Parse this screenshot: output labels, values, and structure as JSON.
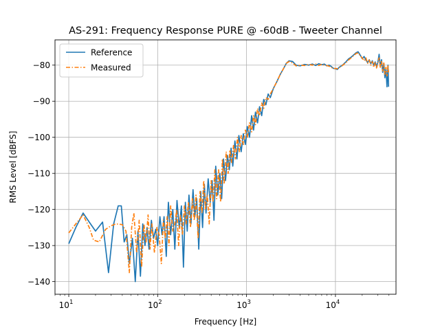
{
  "chart_data": {
    "type": "line",
    "title": "AS-291: Frequency Response PURE @ -60dB - Tweeter Channel",
    "xlabel": "Frequency [Hz]",
    "ylabel": "RMS Level [dBFS]",
    "xscale": "log",
    "xlim": [
      7,
      48000
    ],
    "ylim": [
      -143.5,
      -73
    ],
    "x_ticks": [
      {
        "value": 10,
        "base": "10",
        "exp": "1"
      },
      {
        "value": 100,
        "base": "10",
        "exp": "2"
      },
      {
        "value": 1000,
        "base": "10",
        "exp": "3"
      },
      {
        "value": 10000,
        "base": "10",
        "exp": "4"
      }
    ],
    "y_ticks": [
      {
        "value": -80,
        "label": "−80"
      },
      {
        "value": -90,
        "label": "−90"
      },
      {
        "value": -100,
        "label": "−100"
      },
      {
        "value": -110,
        "label": "−110"
      },
      {
        "value": -120,
        "label": "−120"
      },
      {
        "value": -130,
        "label": "−130"
      },
      {
        "value": -140,
        "label": "−140"
      }
    ],
    "grid": true,
    "legend": "top-left",
    "series": [
      {
        "name": "Reference",
        "color": "#1f77b4",
        "style": "solid",
        "points": [
          [
            10,
            -129.5
          ],
          [
            12,
            -125
          ],
          [
            14.5,
            -121
          ],
          [
            17,
            -123.5
          ],
          [
            20,
            -126
          ],
          [
            24,
            -123.5
          ],
          [
            28,
            -137.5
          ],
          [
            32,
            -124
          ],
          [
            36,
            -119
          ],
          [
            39,
            -119
          ],
          [
            42,
            -129
          ],
          [
            45,
            -127
          ],
          [
            48,
            -135
          ],
          [
            52,
            -128
          ],
          [
            56,
            -140
          ],
          [
            60,
            -126
          ],
          [
            64,
            -138.5
          ],
          [
            68,
            -124
          ],
          [
            72,
            -130
          ],
          [
            76,
            -125
          ],
          [
            80,
            -131
          ],
          [
            85,
            -123
          ],
          [
            90,
            -128
          ],
          [
            95,
            -125.5
          ],
          [
            100,
            -130
          ],
          [
            106,
            -122
          ],
          [
            112,
            -127
          ],
          [
            118,
            -122
          ],
          [
            125,
            -133
          ],
          [
            132,
            -118
          ],
          [
            140,
            -127
          ],
          [
            148,
            -120
          ],
          [
            156,
            -131
          ],
          [
            165,
            -117.5
          ],
          [
            175,
            -125
          ],
          [
            185,
            -119
          ],
          [
            195,
            -136
          ],
          [
            205,
            -118
          ],
          [
            215,
            -126
          ],
          [
            225,
            -116
          ],
          [
            237,
            -124
          ],
          [
            250,
            -114.5
          ],
          [
            262,
            -122
          ],
          [
            275,
            -117
          ],
          [
            290,
            -131
          ],
          [
            305,
            -115
          ],
          [
            320,
            -125
          ],
          [
            335,
            -113
          ],
          [
            350,
            -121
          ],
          [
            370,
            -111.5
          ],
          [
            390,
            -118
          ],
          [
            410,
            -112
          ],
          [
            430,
            -123
          ],
          [
            450,
            -108
          ],
          [
            475,
            -116
          ],
          [
            500,
            -110
          ],
          [
            525,
            -117
          ],
          [
            550,
            -106
          ],
          [
            580,
            -112
          ],
          [
            610,
            -105
          ],
          [
            640,
            -109
          ],
          [
            670,
            -103
          ],
          [
            700,
            -108
          ],
          [
            740,
            -101
          ],
          [
            780,
            -106
          ],
          [
            820,
            -99.5
          ],
          [
            870,
            -104
          ],
          [
            920,
            -99
          ],
          [
            970,
            -102
          ],
          [
            1020,
            -97
          ],
          [
            1080,
            -100
          ],
          [
            1140,
            -94
          ],
          [
            1200,
            -98
          ],
          [
            1260,
            -93
          ],
          [
            1330,
            -96
          ],
          [
            1400,
            -91.5
          ],
          [
            1480,
            -94
          ],
          [
            1560,
            -89.5
          ],
          [
            1650,
            -91
          ],
          [
            1750,
            -88
          ],
          [
            1850,
            -89
          ],
          [
            2000,
            -86.5
          ],
          [
            2200,
            -84.5
          ],
          [
            2400,
            -82.5
          ],
          [
            2600,
            -81
          ],
          [
            2800,
            -79.5
          ],
          [
            3000,
            -78.8
          ],
          [
            3300,
            -79
          ],
          [
            3600,
            -80
          ],
          [
            4000,
            -80.2
          ],
          [
            4500,
            -79.8
          ],
          [
            5000,
            -80
          ],
          [
            5500,
            -79.7
          ],
          [
            6000,
            -80.1
          ],
          [
            6500,
            -79.6
          ],
          [
            7000,
            -79.9
          ],
          [
            7500,
            -79.7
          ],
          [
            8000,
            -80.2
          ],
          [
            8500,
            -80
          ],
          [
            9000,
            -80.4
          ],
          [
            9500,
            -80.9
          ],
          [
            10000,
            -81
          ],
          [
            10500,
            -81.2
          ],
          [
            11000,
            -80.6
          ],
          [
            12000,
            -80
          ],
          [
            13000,
            -79.2
          ],
          [
            14000,
            -78.3
          ],
          [
            15000,
            -77.8
          ],
          [
            16000,
            -77.2
          ],
          [
            17000,
            -76.6
          ],
          [
            18000,
            -76.3
          ],
          [
            19000,
            -77.2
          ],
          [
            20000,
            -78.2
          ],
          [
            21000,
            -77.6
          ],
          [
            22000,
            -78.6
          ],
          [
            23000,
            -79.3
          ],
          [
            24000,
            -78.5
          ],
          [
            25000,
            -79.6
          ],
          [
            26000,
            -78.8
          ],
          [
            27000,
            -80
          ],
          [
            28000,
            -79.1
          ],
          [
            29000,
            -80.4
          ],
          [
            30000,
            -79.2
          ],
          [
            31000,
            -77
          ],
          [
            32000,
            -80.5
          ],
          [
            33000,
            -78.5
          ],
          [
            34000,
            -82
          ],
          [
            35000,
            -79.5
          ],
          [
            36000,
            -83.5
          ],
          [
            37000,
            -81
          ],
          [
            38000,
            -86
          ],
          [
            39000,
            -80
          ],
          [
            39600,
            -86
          ]
        ]
      },
      {
        "name": "Measured",
        "color": "#ff7f0e",
        "style": "dashdot",
        "points": [
          [
            10,
            -126.5
          ],
          [
            12,
            -124
          ],
          [
            14.5,
            -121.5
          ],
          [
            17,
            -125
          ],
          [
            19,
            -128.5
          ],
          [
            22,
            -129
          ],
          [
            26,
            -125.5
          ],
          [
            30,
            -124.5
          ],
          [
            34,
            -124
          ],
          [
            40,
            -124.2
          ],
          [
            44,
            -126
          ],
          [
            48,
            -137.5
          ],
          [
            51,
            -125
          ],
          [
            54,
            -121
          ],
          [
            58,
            -132
          ],
          [
            62,
            -123
          ],
          [
            66,
            -136
          ],
          [
            70,
            -124
          ],
          [
            74,
            -129
          ],
          [
            78,
            -121.5
          ],
          [
            82,
            -131
          ],
          [
            86,
            -124
          ],
          [
            92,
            -132
          ],
          [
            98,
            -125
          ],
          [
            104,
            -127
          ],
          [
            110,
            -135
          ],
          [
            116,
            -123
          ],
          [
            122,
            -128
          ],
          [
            128,
            -122
          ],
          [
            134,
            -130
          ],
          [
            140,
            -119
          ],
          [
            148,
            -126
          ],
          [
            156,
            -124
          ],
          [
            164,
            -120
          ],
          [
            172,
            -130
          ],
          [
            180,
            -121.5
          ],
          [
            190,
            -127
          ],
          [
            200,
            -119
          ],
          [
            210,
            -124
          ],
          [
            222,
            -118
          ],
          [
            234,
            -125
          ],
          [
            246,
            -117
          ],
          [
            258,
            -123
          ],
          [
            270,
            -116
          ],
          [
            285,
            -128
          ],
          [
            300,
            -115
          ],
          [
            315,
            -121
          ],
          [
            330,
            -112
          ],
          [
            345,
            -120
          ],
          [
            362,
            -116
          ],
          [
            380,
            -124
          ],
          [
            400,
            -112
          ],
          [
            420,
            -118
          ],
          [
            440,
            -109
          ],
          [
            460,
            -117
          ],
          [
            485,
            -109
          ],
          [
            510,
            -118
          ],
          [
            535,
            -106
          ],
          [
            560,
            -113
          ],
          [
            590,
            -104
          ],
          [
            620,
            -110
          ],
          [
            650,
            -103.5
          ],
          [
            680,
            -107
          ],
          [
            715,
            -102
          ],
          [
            750,
            -106
          ],
          [
            790,
            -100
          ],
          [
            830,
            -104
          ],
          [
            870,
            -99.5
          ],
          [
            920,
            -102
          ],
          [
            970,
            -98
          ],
          [
            1020,
            -100
          ],
          [
            1080,
            -96
          ],
          [
            1140,
            -98.5
          ],
          [
            1200,
            -94
          ],
          [
            1260,
            -96.5
          ],
          [
            1330,
            -92
          ],
          [
            1400,
            -94
          ],
          [
            1480,
            -90.5
          ],
          [
            1560,
            -92
          ],
          [
            1650,
            -89
          ],
          [
            1750,
            -89.5
          ],
          [
            1850,
            -88
          ],
          [
            2000,
            -86.5
          ],
          [
            2200,
            -84.5
          ],
          [
            2400,
            -82.5
          ],
          [
            2600,
            -81
          ],
          [
            2800,
            -79.5
          ],
          [
            3000,
            -79
          ],
          [
            3300,
            -79.4
          ],
          [
            3600,
            -80.2
          ],
          [
            4000,
            -80
          ],
          [
            4500,
            -80.1
          ],
          [
            5000,
            -79.8
          ],
          [
            5500,
            -80
          ],
          [
            6000,
            -79.7
          ],
          [
            6500,
            -80.1
          ],
          [
            7000,
            -79.8
          ],
          [
            7500,
            -80
          ],
          [
            8000,
            -80.1
          ],
          [
            8500,
            -80.3
          ],
          [
            9000,
            -80.6
          ],
          [
            9500,
            -81
          ],
          [
            10000,
            -80.9
          ],
          [
            10500,
            -81
          ],
          [
            11000,
            -80.7
          ],
          [
            12000,
            -80.1
          ],
          [
            13000,
            -79.4
          ],
          [
            14000,
            -78.6
          ],
          [
            15000,
            -78
          ],
          [
            16000,
            -77.4
          ],
          [
            17000,
            -76.8
          ],
          [
            18000,
            -76.6
          ],
          [
            19000,
            -77.4
          ],
          [
            20000,
            -78
          ],
          [
            21000,
            -78.8
          ],
          [
            22000,
            -78
          ],
          [
            23000,
            -79.5
          ],
          [
            24000,
            -78.6
          ],
          [
            25000,
            -80
          ],
          [
            26000,
            -79
          ],
          [
            27000,
            -80.6
          ],
          [
            28000,
            -79.3
          ],
          [
            29000,
            -80.8
          ],
          [
            30000,
            -79.5
          ],
          [
            31000,
            -78
          ],
          [
            32000,
            -80.6
          ],
          [
            33000,
            -79
          ],
          [
            34000,
            -81.6
          ],
          [
            35000,
            -79.4
          ],
          [
            36000,
            -82.5
          ],
          [
            37000,
            -80.6
          ],
          [
            38000,
            -83
          ],
          [
            39000,
            -80
          ],
          [
            39600,
            -82
          ]
        ]
      }
    ]
  }
}
